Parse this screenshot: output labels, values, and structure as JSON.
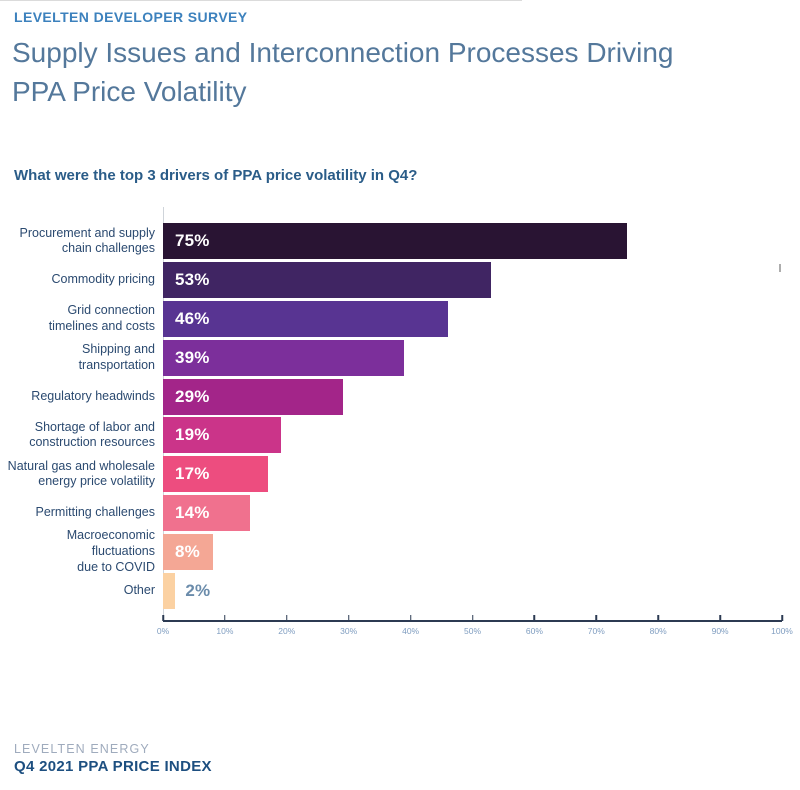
{
  "header": {
    "eyebrow": "LEVELTEN DEVELOPER SURVEY",
    "title_line1": "Supply Issues and Interconnection Processes Driving",
    "title_line2": "PPA Price Volatility"
  },
  "question": "What were the top 3 drivers of PPA price volatility in Q4?",
  "chart_data": {
    "type": "bar",
    "orientation": "horizontal",
    "title": "What were the top 3 drivers of PPA price volatility in Q4?",
    "categories": [
      "Procurement and supply\nchain challenges",
      "Commodity pricing",
      "Grid connection\ntimelines and costs",
      "Shipping and\ntransportation",
      "Regulatory headwinds",
      "Shortage of labor and\nconstruction resources",
      "Natural gas and wholesale\nenergy price volatility",
      "Permitting challenges",
      "Macroeconomic\nfluctuations\ndue to COVID",
      "Other"
    ],
    "values": [
      75,
      53,
      46,
      39,
      29,
      19,
      17,
      14,
      8,
      2
    ],
    "value_labels": [
      "75%",
      "53%",
      "46%",
      "39%",
      "29%",
      "19%",
      "17%",
      "14%",
      "8%",
      "2%"
    ],
    "bar_colors": [
      "#291433",
      "#402563",
      "#583492",
      "#7c2f9b",
      "#a32589",
      "#cb3489",
      "#ed4d7f",
      "#f0718e",
      "#f4a795",
      "#fbd1a2"
    ],
    "xlim": [
      0,
      100
    ],
    "x_ticks": [
      "0%",
      "10%",
      "20%",
      "30%",
      "40%",
      "50%",
      "60%",
      "70%",
      "80%",
      "90%",
      "100%"
    ],
    "xlabel": "",
    "ylabel": "",
    "grid": false,
    "legend": false,
    "value_label_position": "inside-left",
    "small_bar_label_outside_threshold": 5
  },
  "footer": {
    "company": "LEVELTEN ENERGY",
    "report": "Q4 2021 PPA PRICE INDEX"
  },
  "colors": {
    "eyebrow": "#3c81bd",
    "title": "#54789b",
    "question": "#2a5c88",
    "category_label": "#2b4a70",
    "axis_line": "#2c3a52",
    "tick_label": "#7f9dc0",
    "value_label_inside": "#ffffff",
    "value_label_outside": "#6b8cab",
    "footer_company": "#9fabbd",
    "footer_report": "#1d4f80"
  }
}
